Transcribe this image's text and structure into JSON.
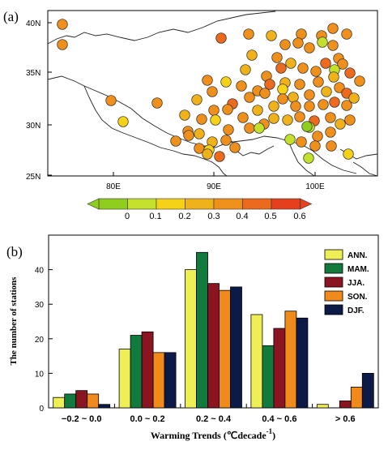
{
  "map_panel": {
    "panel_label": "(a)",
    "lat_ticks": [
      "40N",
      "35N",
      "30N",
      "25N"
    ],
    "lon_ticks": [
      "80E",
      "90E",
      "100E"
    ],
    "colorbar_labels": [
      "0",
      "0.1",
      "0.2",
      "0.3",
      "0.4",
      "0.5",
      "0.6"
    ],
    "colorbar_colors": [
      "#8fce1e",
      "#c4e02a",
      "#f5d218",
      "#f0b21a",
      "#f0901c",
      "#ec6a1e",
      "#e4401e"
    ],
    "station_trend_values": [
      0.45,
      0.45,
      0.55,
      0.45,
      0.35,
      0.45,
      0.45,
      0.4,
      0.45,
      0.45,
      0.45,
      0.1,
      0.45,
      0.45,
      0.45,
      0.4,
      0.35,
      0.35,
      0.5,
      0.45,
      0.5,
      0.45,
      0.35,
      0.45,
      0.5,
      0.45,
      0.45,
      0.15,
      0.35,
      0.45,
      0.45,
      0.3,
      0.5,
      0.45,
      0.4,
      0.25,
      0.45,
      0.45,
      0.3,
      0.4,
      0.5,
      0.45,
      0.45,
      0.2,
      0.3,
      0.45,
      0.3,
      0.4,
      0.5,
      0.3,
      0.45,
      0.5,
      0.4,
      0.45,
      0.45,
      0.45,
      0.3,
      0.35,
      0.4,
      0.45,
      0.2,
      0.45,
      0.35,
      0.3,
      0.4,
      0.45,
      0.35,
      0.45,
      0.4,
      0.45,
      0.45,
      0.4,
      0.3,
      0.35,
      0.45,
      0.5,
      0.45,
      0.35,
      0.45,
      0.45,
      0.45,
      0.45,
      0.45,
      0.15,
      0.15,
      0.15,
      0.05,
      0.15,
      0.25,
      0.4,
      0.45,
      0.25,
      0.45,
      0.4,
      0.35,
      0.55,
      0.45,
      0.2,
      0.15
    ]
  },
  "bar_panel": {
    "panel_label": "(b)"
  },
  "chart_data": {
    "type": "bar",
    "categories": [
      "−0.2 ~ 0.0",
      "0.0 ~ 0.2",
      "0.2 ~ 0.4",
      "0.4 ~ 0.6",
      "> 0.6"
    ],
    "series": [
      {
        "name": "ANN.",
        "color": "#eeee55",
        "values": [
          3,
          17,
          40,
          27,
          1
        ]
      },
      {
        "name": "MAM.",
        "color": "#127a3c",
        "values": [
          4,
          21,
          45,
          18,
          0
        ]
      },
      {
        "name": "JJA.",
        "color": "#8a1520",
        "values": [
          5,
          22,
          36,
          23,
          2
        ]
      },
      {
        "name": "SON.",
        "color": "#f08a1a",
        "values": [
          4,
          16,
          34,
          28,
          6
        ]
      },
      {
        "name": "DJF.",
        "color": "#0c1a48",
        "values": [
          1,
          16,
          35,
          26,
          10
        ]
      }
    ],
    "xlabel": "Warming Trends (℃decade",
    "xlabel_sup": "-1",
    "xlabel_close": ")",
    "ylabel": "The number of stations",
    "ylim": [
      0,
      50
    ],
    "yticks": [
      0,
      10,
      20,
      30,
      40
    ],
    "legend_position": "top-right",
    "grid": false
  }
}
